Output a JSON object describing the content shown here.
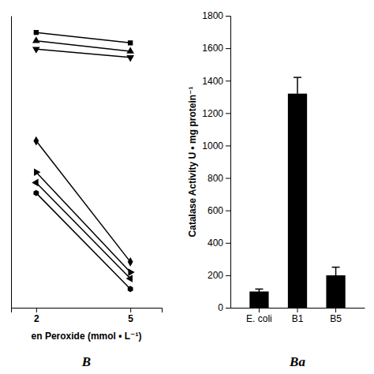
{
  "chart_data": [
    {
      "type": "line",
      "x_label": "en Peroxide (mmol • L⁻¹)",
      "annotation": "B",
      "x": [
        2,
        5
      ],
      "series": [
        {
          "color": "#000000",
          "marker": "square",
          "values": [
            1720,
            1670
          ]
        },
        {
          "color": "#000000",
          "marker": "triangle-up",
          "values": [
            1680,
            1630
          ]
        },
        {
          "color": "#000000",
          "marker": "triangle-down",
          "values": [
            1640,
            1600
          ]
        },
        {
          "color": "#000000",
          "marker": "diamond",
          "values": [
            1200,
            620
          ]
        },
        {
          "color": "#000000",
          "marker": "triangle-right",
          "values": [
            1050,
            570
          ]
        },
        {
          "color": "#000000",
          "marker": "triangle-left",
          "values": [
            1000,
            540
          ]
        },
        {
          "color": "#000000",
          "marker": "hexagon",
          "values": [
            950,
            490
          ]
        }
      ],
      "xlim": [
        1.2,
        6.0
      ],
      "xticks": [
        2,
        5
      ],
      "ylim": [
        400,
        1800
      ],
      "yticks": [],
      "tick_labels": "x"
    },
    {
      "type": "bar",
      "y_label": "Catalase Activity U • mg protein⁻¹",
      "annotation": "Ba",
      "categories": [
        "E. coli",
        "B1",
        "B5"
      ],
      "values": [
        100,
        1320,
        200
      ],
      "errors": [
        15,
        100,
        50
      ],
      "color": "#000000",
      "ylim": [
        0,
        1800
      ],
      "yticks": [
        0,
        200,
        400,
        600,
        800,
        1000,
        1200,
        1400,
        1600,
        1800
      ]
    }
  ]
}
